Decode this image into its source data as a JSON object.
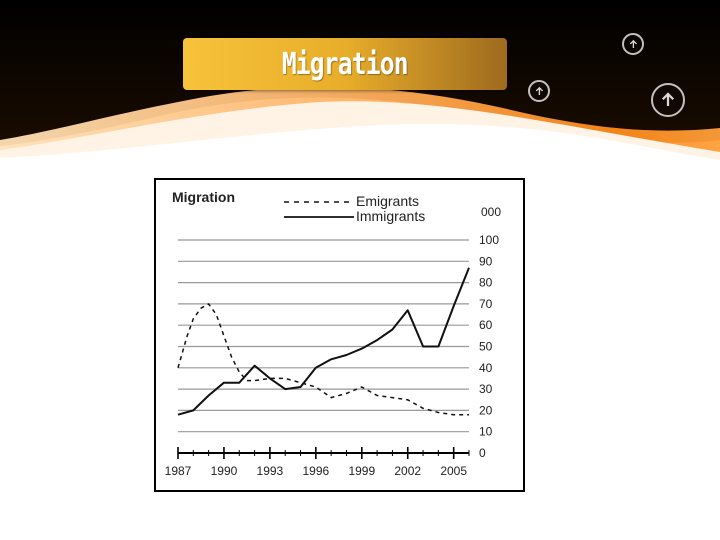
{
  "slide": {
    "title": "Migration",
    "nav_icons": [
      "up-arrow-circle-icon",
      "up-arrow-circle-icon",
      "up-arrow-circle-icon"
    ]
  },
  "chart_data": {
    "type": "line",
    "title": "Migration",
    "unit_label": "000",
    "x_ticks": [
      "1987",
      "1990",
      "1993",
      "1996",
      "1999",
      "2002",
      "2005"
    ],
    "y_ticks": [
      "0",
      "10",
      "20",
      "30",
      "40",
      "50",
      "60",
      "70",
      "80",
      "90",
      "100"
    ],
    "xlim": [
      1987,
      2006
    ],
    "ylim": [
      0,
      100
    ],
    "grid": true,
    "legend_position": "top",
    "series": [
      {
        "name": "Emigrants",
        "style": "dashed",
        "x": [
          1987,
          1987.6,
          1988,
          1988.5,
          1989,
          1989.5,
          1990,
          1990.5,
          1991,
          1991.5,
          1992,
          1993,
          1994,
          1995,
          1996,
          1997,
          1998,
          1999,
          2000,
          2001,
          2002,
          2003,
          2004,
          2005,
          2006
        ],
        "y": [
          40,
          55,
          63,
          68,
          70,
          65,
          55,
          45,
          38,
          34,
          34,
          35,
          35,
          33,
          31,
          26,
          28,
          31,
          27,
          26,
          25,
          21,
          19,
          18,
          18
        ]
      },
      {
        "name": "Immigrants",
        "style": "solid",
        "x": [
          1987,
          1988,
          1989,
          1990,
          1991,
          1992,
          1993,
          1994,
          1995,
          1996,
          1997,
          1998,
          1999,
          2000,
          2001,
          2002,
          2003,
          2004,
          2005,
          2006
        ],
        "y": [
          18,
          20,
          27,
          33,
          33,
          41,
          35,
          30,
          31,
          40,
          44,
          46,
          49,
          53,
          58,
          67,
          50,
          50,
          69,
          87
        ]
      }
    ],
    "colors": {
      "line": "#111111",
      "grid": "#999999",
      "axis": "#000000"
    }
  }
}
